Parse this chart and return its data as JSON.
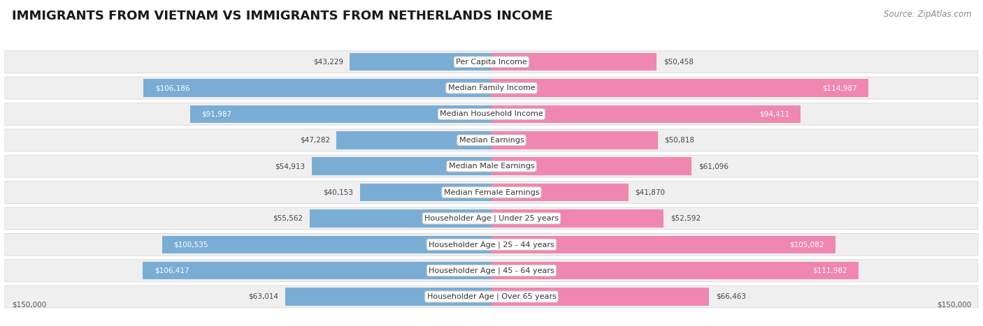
{
  "title": "IMMIGRANTS FROM VIETNAM VS IMMIGRANTS FROM NETHERLANDS INCOME",
  "source": "Source: ZipAtlas.com",
  "categories": [
    "Per Capita Income",
    "Median Family Income",
    "Median Household Income",
    "Median Earnings",
    "Median Male Earnings",
    "Median Female Earnings",
    "Householder Age | Under 25 years",
    "Householder Age | 25 - 44 years",
    "Householder Age | 45 - 64 years",
    "Householder Age | Over 65 years"
  ],
  "vietnam_values": [
    43229,
    106186,
    91987,
    47282,
    54913,
    40153,
    55562,
    100535,
    106417,
    63014
  ],
  "netherlands_values": [
    50458,
    114987,
    94411,
    50818,
    61096,
    41870,
    52592,
    105082,
    111982,
    66463
  ],
  "vietnam_color": "#7aadd4",
  "netherlands_color": "#f087b0",
  "vietnam_label": "Immigrants from Vietnam",
  "netherlands_label": "Immigrants from Netherlands",
  "max_value": 150000,
  "row_bg_color": "#efefef",
  "row_border_color": "#d8d8d8",
  "title_fontsize": 13,
  "source_fontsize": 8.5,
  "label_fontsize": 8,
  "value_fontsize": 7.5,
  "axis_label": "$150,000"
}
